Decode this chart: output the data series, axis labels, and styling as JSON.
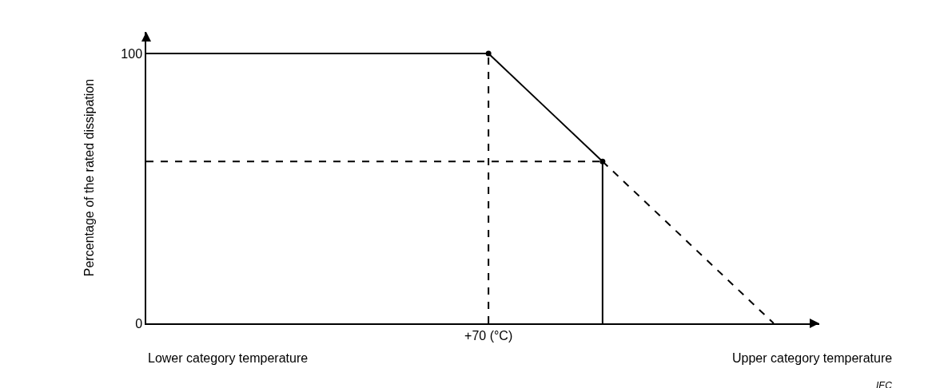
{
  "chart_data": {
    "type": "line",
    "ylabel": "Percentage of the rated dissipation",
    "categories": [
      null,
      null,
      null,
      null,
      null,
      null,
      "+70 (°C)",
      null,
      null,
      null,
      null,
      null
    ],
    "ylim": [
      0,
      108
    ],
    "yticks": [
      0,
      100
    ],
    "series": [
      {
        "color": "#000000",
        "line_style": "solid",
        "values": [
          100,
          100,
          100,
          100,
          100,
          100,
          100,
          80,
          60,
          null,
          null,
          null
        ]
      },
      {
        "color": "#000000",
        "line_style": "dashed",
        "values": [
          null,
          null,
          null,
          null,
          null,
          null,
          null,
          null,
          60,
          40,
          20,
          0
        ]
      },
      {
        "type": "lollipop",
        "marker": "circle",
        "color": "#000000",
        "line_style": "dashed",
        "values": [
          null,
          null,
          null,
          null,
          null,
          null,
          100,
          null,
          null,
          null,
          null,
          null
        ]
      },
      {
        "color": "#000000",
        "line_style": "dashed",
        "values": [
          60,
          60,
          60,
          60,
          60,
          60,
          60,
          60,
          60,
          null,
          null,
          null
        ]
      },
      {
        "type": "lollipop",
        "marker": "circle",
        "color": "#000000",
        "line_style": "solid",
        "values": [
          null,
          null,
          null,
          null,
          null,
          null,
          null,
          null,
          60,
          null,
          null,
          null
        ]
      }
    ],
    "annotations": [
      "Lower category temperature",
      "Upper category temperature",
      "IEC"
    ],
    "grid": false,
    "marker": "none"
  }
}
